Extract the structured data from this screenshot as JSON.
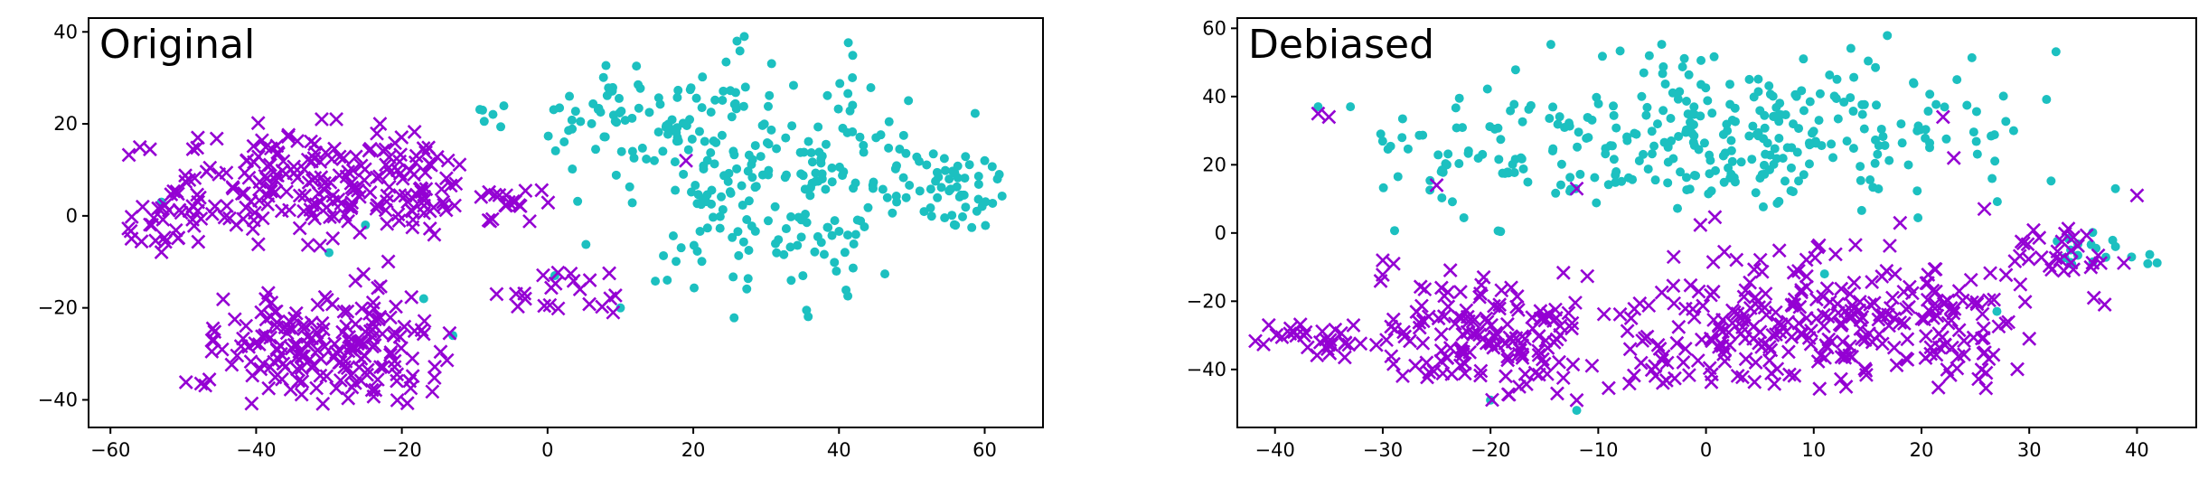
{
  "chart_data": [
    {
      "type": "scatter",
      "title": "Original",
      "xlabel": "",
      "ylabel": "",
      "xlim": [
        -63,
        68
      ],
      "ylim": [
        -46,
        43
      ],
      "xticks": [
        -60,
        -40,
        -20,
        0,
        20,
        40,
        60
      ],
      "yticks": [
        -40,
        -20,
        0,
        20,
        40
      ],
      "xtick_labels": [
        "−60",
        "−40",
        "−20",
        "0",
        "20",
        "40",
        "60"
      ],
      "ytick_labels": [
        "−40",
        "−20",
        "0",
        "20",
        "40"
      ],
      "grid": false,
      "legend": "none",
      "series": [
        {
          "marker": "dot",
          "color": "#1cc0c0",
          "clusters": [
            {
              "cx": 32,
              "cy": 8,
              "sx": 12,
              "sy": 13,
              "n": 220,
              "xmin": 0,
              "xmax": 63,
              "ymin": -24,
              "ymax": 39
            },
            {
              "cx": 55,
              "cy": 6,
              "sx": 4,
              "sy": 5,
              "n": 50,
              "xmin": 46,
              "xmax": 63,
              "ymin": -6,
              "ymax": 14
            },
            {
              "cx": 13,
              "cy": 22,
              "sx": 7,
              "sy": 7,
              "n": 70,
              "xmin": 0,
              "xmax": 28,
              "ymin": 5,
              "ymax": 34
            },
            {
              "cx": -9,
              "cy": 22,
              "sx": 1.5,
              "sy": 1.5,
              "n": 6,
              "xmin": -12,
              "xmax": -6,
              "ymin": 18,
              "ymax": 25
            }
          ],
          "points": [
            {
              "x": 27,
              "y": 39
            },
            {
              "x": 26,
              "y": 38
            },
            {
              "x": -53,
              "y": 3
            },
            {
              "x": -25,
              "y": -2
            },
            {
              "x": -30,
              "y": -8
            },
            {
              "x": -17,
              "y": -18
            },
            {
              "x": -13,
              "y": -26
            },
            {
              "x": 10,
              "y": -20
            },
            {
              "x": 1,
              "y": -13
            },
            {
              "x": 60,
              "y": 12
            },
            {
              "x": 62,
              "y": 9
            },
            {
              "x": 3,
              "y": 26
            }
          ]
        },
        {
          "marker": "x",
          "color": "#9400d3",
          "clusters": [
            {
              "cx": -35,
              "cy": 6,
              "sx": 9,
              "sy": 6,
              "n": 170,
              "xmin": -58,
              "xmax": -12,
              "ymin": -8,
              "ymax": 21
            },
            {
              "cx": -30,
              "cy": -28,
              "sx": 9,
              "sy": 7,
              "n": 190,
              "xmin": -50,
              "xmax": -13,
              "ymin": -42,
              "ymax": -8
            },
            {
              "cx": -19,
              "cy": 6,
              "sx": 4,
              "sy": 6,
              "n": 50,
              "xmin": -27,
              "xmax": -11,
              "ymin": -5,
              "ymax": 19
            },
            {
              "cx": -4,
              "cy": 3,
              "sx": 3,
              "sy": 3,
              "n": 20,
              "xmin": -10,
              "xmax": 3,
              "ymin": -3,
              "ymax": 9
            },
            {
              "cx": 2,
              "cy": -16,
              "sx": 3,
              "sy": 3,
              "n": 20,
              "xmin": -5,
              "xmax": 11,
              "ymin": -25,
              "ymax": -10
            },
            {
              "cx": -53,
              "cy": -2,
              "sx": 2.5,
              "sy": 3,
              "n": 25,
              "xmin": -58,
              "xmax": -46,
              "ymin": -8,
              "ymax": 6
            }
          ],
          "points": [
            {
              "x": 19,
              "y": 12
            },
            {
              "x": -31,
              "y": 21
            },
            {
              "x": -29,
              "y": 21
            },
            {
              "x": -23,
              "y": 20
            },
            {
              "x": -48,
              "y": 17
            },
            {
              "x": -7,
              "y": -17
            },
            {
              "x": 9,
              "y": -21
            }
          ]
        }
      ]
    },
    {
      "type": "scatter",
      "title": "Debiased",
      "xlabel": "",
      "ylabel": "",
      "xlim": [
        -43.5,
        45.5
      ],
      "ylim": [
        -57,
        63
      ],
      "xticks": [
        -40,
        -30,
        -20,
        -10,
        0,
        10,
        20,
        30,
        40
      ],
      "yticks": [
        -40,
        -20,
        0,
        20,
        40,
        60
      ],
      "xtick_labels": [
        "−40",
        "−30",
        "−20",
        "−10",
        "0",
        "10",
        "20",
        "30",
        "40"
      ],
      "ytick_labels": [
        "−40",
        "−20",
        "0",
        "20",
        "40",
        "60"
      ],
      "grid": false,
      "legend": "none",
      "series": [
        {
          "marker": "dot",
          "color": "#1cc0c0",
          "clusters": [
            {
              "cx": 2,
              "cy": 28,
              "sx": 13,
              "sy": 12,
              "n": 300,
              "xmin": -31,
              "xmax": 33,
              "ymin": 3,
              "ymax": 58
            },
            {
              "cx": -22,
              "cy": 20,
              "sx": 5,
              "sy": 12,
              "n": 40,
              "xmin": -31,
              "xmax": -12,
              "ymin": 0,
              "ymax": 42
            },
            {
              "cx": 36,
              "cy": -6,
              "sx": 3,
              "sy": 5,
              "n": 18,
              "xmin": 32,
              "xmax": 42,
              "ymin": -15,
              "ymax": 13
            }
          ],
          "points": [
            {
              "x": -36,
              "y": 37
            },
            {
              "x": -33,
              "y": 37
            },
            {
              "x": -12,
              "y": -52
            },
            {
              "x": -20,
              "y": -49
            },
            {
              "x": 27,
              "y": -23
            },
            {
              "x": 11,
              "y": -12
            },
            {
              "x": 38,
              "y": 13
            },
            {
              "x": 41,
              "y": -9
            }
          ]
        },
        {
          "marker": "x",
          "color": "#9400d3",
          "clusters": [
            {
              "cx": -20,
              "cy": -30,
              "sx": 7,
              "sy": 9,
              "n": 150,
              "xmin": -31,
              "xmax": -8,
              "ymin": -50,
              "ymax": -10
            },
            {
              "cx": -36,
              "cy": -30,
              "sx": 3,
              "sy": 4,
              "n": 30,
              "xmin": -42,
              "xmax": -31,
              "ymin": -40,
              "ymax": -24
            },
            {
              "cx": 15,
              "cy": -25,
              "sx": 9,
              "sy": 12,
              "n": 230,
              "xmin": -5,
              "xmax": 30,
              "ymin": -46,
              "ymax": 12
            },
            {
              "cx": 0,
              "cy": -30,
              "sx": 6,
              "sy": 8,
              "n": 70,
              "xmin": -10,
              "xmax": 10,
              "ymin": -46,
              "ymax": -14
            },
            {
              "cx": 32,
              "cy": -5,
              "sx": 3,
              "sy": 5,
              "n": 28,
              "xmin": 27,
              "xmax": 40,
              "ymin": -16,
              "ymax": 13
            }
          ],
          "points": [
            {
              "x": -36,
              "y": 35
            },
            {
              "x": -35,
              "y": 34
            },
            {
              "x": -30,
              "y": -8
            },
            {
              "x": -29,
              "y": -9
            },
            {
              "x": -25,
              "y": 14
            },
            {
              "x": -12,
              "y": 13
            },
            {
              "x": 22,
              "y": 34
            },
            {
              "x": 23,
              "y": 22
            },
            {
              "x": 40,
              "y": 11
            },
            {
              "x": 37,
              "y": -21
            },
            {
              "x": 36,
              "y": -19
            },
            {
              "x": 26,
              "y": -41
            },
            {
              "x": 30,
              "y": -31
            },
            {
              "x": -12,
              "y": -49
            },
            {
              "x": -3,
              "y": -7
            }
          ]
        }
      ]
    }
  ]
}
